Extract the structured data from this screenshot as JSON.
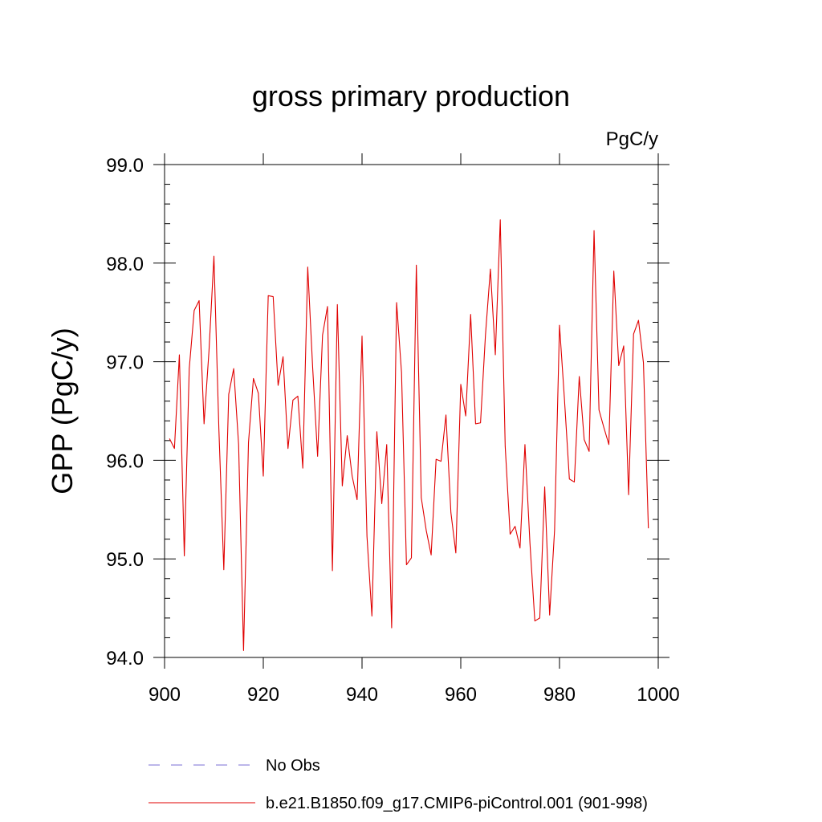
{
  "chart_data": {
    "type": "line",
    "title": "gross primary production",
    "units_label": "PgC/y",
    "ylabel": "GPP  (PgC/y)",
    "xlabel": "",
    "xlim": [
      900,
      1000
    ],
    "ylim": [
      94.0,
      99.0
    ],
    "xticks": [
      900,
      920,
      940,
      960,
      980,
      1000
    ],
    "xtick_labels": [
      "900",
      "920",
      "940",
      "960",
      "980",
      "1000"
    ],
    "yticks": [
      94.0,
      95.0,
      96.0,
      97.0,
      98.0,
      99.0
    ],
    "ytick_labels": [
      "94.0",
      "95.0",
      "96.0",
      "97.0",
      "98.0",
      "99.0"
    ],
    "grid": false,
    "series": [
      {
        "name": "b.e21.B1850.f09_g17.CMIP6-piControl.001 (901-998)",
        "color": "#e00000",
        "style": "solid",
        "x": [
          901,
          902,
          903,
          904,
          905,
          906,
          907,
          908,
          909,
          910,
          911,
          912,
          913,
          914,
          915,
          916,
          917,
          918,
          919,
          920,
          921,
          922,
          923,
          924,
          925,
          926,
          927,
          928,
          929,
          930,
          931,
          932,
          933,
          934,
          935,
          936,
          937,
          938,
          939,
          940,
          941,
          942,
          943,
          944,
          945,
          946,
          947,
          948,
          949,
          950,
          951,
          952,
          953,
          954,
          955,
          956,
          957,
          958,
          959,
          960,
          961,
          962,
          963,
          964,
          965,
          966,
          967,
          968,
          969,
          970,
          971,
          972,
          973,
          974,
          975,
          976,
          977,
          978,
          979,
          980,
          981,
          982,
          983,
          984,
          985,
          986,
          987,
          988,
          989,
          990,
          991,
          992,
          993,
          994,
          995,
          996,
          997,
          998
        ],
        "values": [
          96.22,
          96.12,
          97.07,
          95.03,
          96.93,
          97.52,
          97.62,
          96.37,
          97.11,
          98.07,
          96.32,
          94.89,
          96.67,
          96.93,
          96.16,
          94.07,
          96.18,
          96.83,
          96.68,
          95.84,
          97.67,
          97.66,
          96.76,
          97.05,
          96.12,
          96.61,
          96.65,
          95.92,
          97.96,
          96.94,
          96.04,
          97.27,
          97.56,
          94.88,
          97.58,
          95.74,
          96.25,
          95.84,
          95.6,
          97.26,
          95.23,
          94.42,
          96.29,
          95.56,
          96.16,
          94.3,
          97.6,
          96.89,
          94.94,
          95.01,
          97.98,
          95.62,
          95.29,
          95.04,
          96.01,
          95.99,
          96.46,
          95.47,
          95.06,
          96.77,
          96.45,
          97.48,
          96.37,
          96.38,
          97.27,
          97.94,
          97.07,
          98.44,
          96.14,
          95.25,
          95.33,
          95.11,
          96.16,
          95.17,
          94.37,
          94.4,
          95.73,
          94.43,
          95.29,
          97.37,
          96.62,
          95.81,
          95.78,
          96.85,
          96.21,
          96.09,
          98.33,
          96.51,
          96.33,
          96.16,
          97.92,
          96.96,
          97.16,
          95.65,
          97.28,
          97.42,
          96.99,
          95.31
        ]
      }
    ],
    "legend": {
      "position": "bottom",
      "entries": [
        {
          "label": "No Obs",
          "color": "#7a6fd6",
          "style": "dashed"
        },
        {
          "label": "b.e21.B1850.f09_g17.CMIP6-piControl.001 (901-998)",
          "color": "#e00000",
          "style": "solid"
        }
      ]
    }
  }
}
